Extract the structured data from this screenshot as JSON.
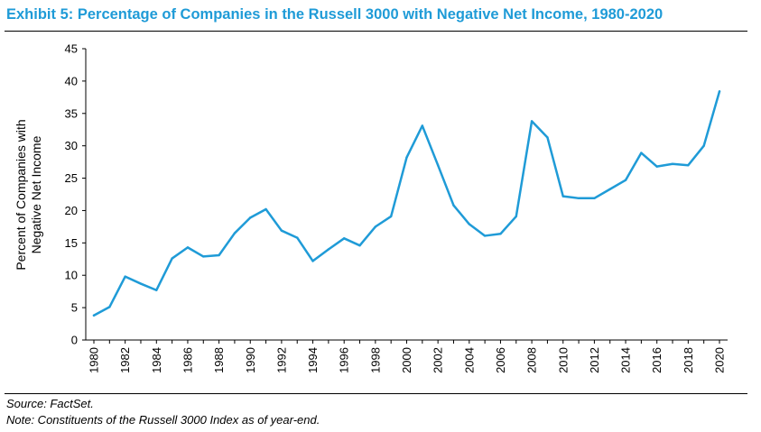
{
  "title": "Exhibit 5: Percentage of Companies in the Russell 3000 with Negative Net Income, 1980-2020",
  "footer": {
    "source": "Source: FactSet.",
    "note": "Note: Constituents of the Russell 3000 Index as of year-end."
  },
  "colors": {
    "title": "#1f9bd7",
    "line": "#1f9bd7"
  },
  "chart_data": {
    "type": "line",
    "title": "Exhibit 5: Percentage of Companies in the Russell 3000 with Negative Net Income, 1980-2020",
    "ylabel_lines": [
      "Percent of Companies with",
      "Negative Net Income"
    ],
    "xlabel": "",
    "ylim": [
      0,
      45
    ],
    "yticks": [
      0,
      5,
      10,
      15,
      20,
      25,
      30,
      35,
      40,
      45
    ],
    "xlim": [
      1980,
      2020
    ],
    "xticks": [
      1980,
      1982,
      1984,
      1986,
      1988,
      1990,
      1992,
      1994,
      1996,
      1998,
      2000,
      2002,
      2004,
      2006,
      2008,
      2010,
      2012,
      2014,
      2016,
      2018,
      2020
    ],
    "grid": false,
    "legend": "none",
    "x": [
      1980,
      1981,
      1982,
      1983,
      1984,
      1985,
      1986,
      1987,
      1988,
      1989,
      1990,
      1991,
      1992,
      1993,
      1994,
      1995,
      1996,
      1997,
      1998,
      1999,
      2000,
      2001,
      2002,
      2003,
      2004,
      2005,
      2006,
      2007,
      2008,
      2009,
      2010,
      2011,
      2012,
      2013,
      2014,
      2015,
      2016,
      2017,
      2018,
      2019,
      2020
    ],
    "values": [
      3.8,
      5.1,
      9.8,
      8.7,
      7.7,
      12.6,
      14.3,
      12.9,
      13.1,
      16.5,
      18.9,
      20.2,
      16.9,
      15.8,
      12.2,
      14.0,
      15.7,
      14.6,
      17.5,
      19.1,
      28.2,
      33.1,
      27.0,
      20.8,
      17.9,
      16.1,
      16.4,
      19.1,
      33.8,
      31.3,
      22.2,
      21.9,
      21.9,
      23.3,
      24.7,
      28.9,
      26.8,
      27.2,
      27.0,
      30.0,
      38.4
    ]
  }
}
